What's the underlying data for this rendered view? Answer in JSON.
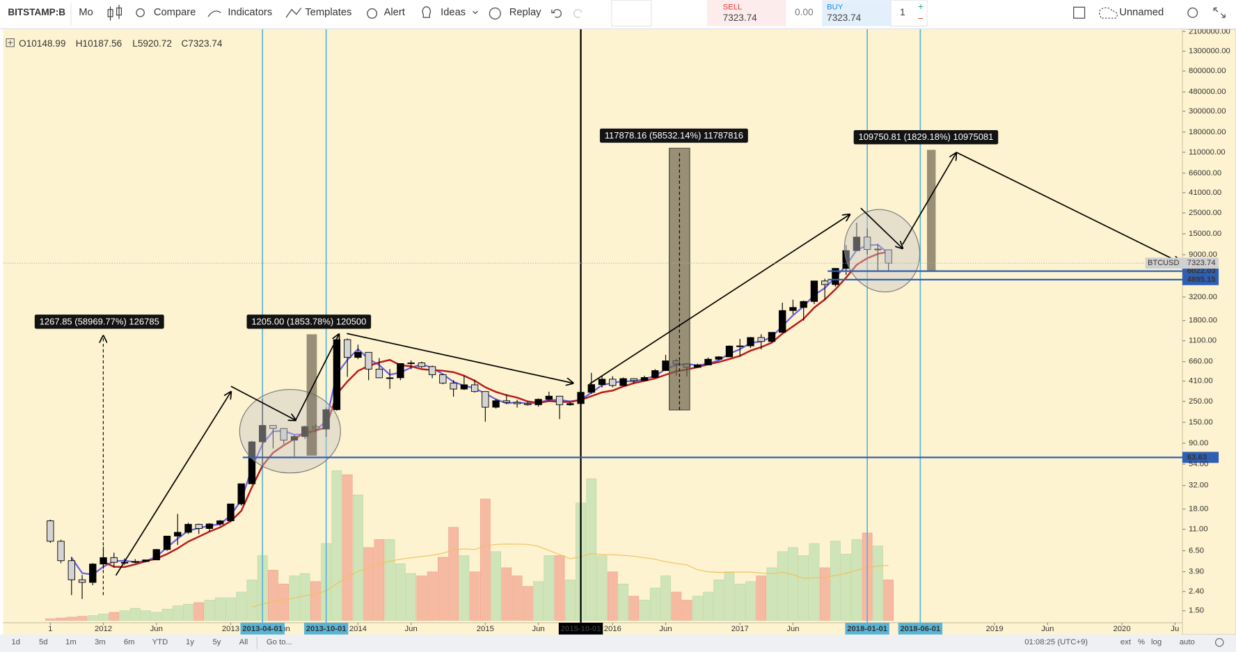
{
  "toolbar": {
    "symbol": "BITSTAMP:B",
    "interval": "Mo",
    "buttons": [
      "Compare",
      "Indicators",
      "Templates",
      "Alert",
      "Ideas",
      "Replay"
    ],
    "sell": {
      "label": "SELL",
      "price": "7323.74"
    },
    "spread": "0.00",
    "buy": {
      "label": "BUY",
      "price": "7323.74"
    },
    "quantity": "1",
    "layout_name": "Unnamed"
  },
  "legend": [
    "O10148.99",
    "H10187.56",
    "L5920.72",
    "C7323.74"
  ],
  "chart_data": {
    "type": "candlestick",
    "log_scale": true,
    "start": "2011-08",
    "xlim": [
      "2011-04",
      "2020-07"
    ],
    "ylim": [
      1.12,
      2220000
    ],
    "candles": [
      [
        13.5,
        13.9,
        7.9,
        8.2
      ],
      [
        8.2,
        8.5,
        4.8,
        5.1
      ],
      [
        5.1,
        5.6,
        2.2,
        3.2
      ],
      [
        3.2,
        3.6,
        2.0,
        3.0
      ],
      [
        3.0,
        4.8,
        2.8,
        4.7
      ],
      [
        4.7,
        7.2,
        4.2,
        5.5
      ],
      [
        5.5,
        6.2,
        4.3,
        4.9
      ],
      [
        4.9,
        5.4,
        4.6,
        4.9
      ],
      [
        4.9,
        5.3,
        4.8,
        5.0
      ],
      [
        5.0,
        5.2,
        4.9,
        5.2
      ],
      [
        5.2,
        6.8,
        5.2,
        6.7
      ],
      [
        6.7,
        9.3,
        6.5,
        9.3
      ],
      [
        9.3,
        16.0,
        7.5,
        10.2
      ],
      [
        10.2,
        12.9,
        9.8,
        12.4
      ],
      [
        12.4,
        12.6,
        9.8,
        11.2
      ],
      [
        11.2,
        12.8,
        10.4,
        12.5
      ],
      [
        12.5,
        13.8,
        12.0,
        13.5
      ],
      [
        13.5,
        20.5,
        13.2,
        20.4
      ],
      [
        20.4,
        33.5,
        19.6,
        33.4
      ],
      [
        33.4,
        95,
        33,
        93
      ],
      [
        93,
        266,
        50,
        139
      ],
      [
        139,
        140,
        79,
        129
      ],
      [
        129,
        130,
        88,
        97
      ],
      [
        97,
        110,
        65,
        106
      ],
      [
        106,
        138,
        100,
        135
      ],
      [
        135,
        145,
        118,
        127
      ],
      [
        127,
        215,
        105,
        204
      ],
      [
        204,
        1163,
        199,
        1130
      ],
      [
        1130,
        1163,
        455,
        732
      ],
      [
        732,
        1000,
        700,
        829
      ],
      [
        829,
        830,
        420,
        550
      ],
      [
        550,
        720,
        440,
        445
      ],
      [
        445,
        550,
        340,
        445
      ],
      [
        445,
        630,
        420,
        630
      ],
      [
        630,
        680,
        550,
        640
      ],
      [
        640,
        660,
        565,
        585
      ],
      [
        585,
        600,
        440,
        480
      ],
      [
        480,
        490,
        380,
        390
      ],
      [
        390,
        420,
        280,
        338
      ],
      [
        338,
        470,
        330,
        375
      ],
      [
        375,
        425,
        310,
        318
      ],
      [
        318,
        320,
        152,
        217
      ],
      [
        217,
        265,
        210,
        254
      ],
      [
        254,
        298,
        235,
        244
      ],
      [
        244,
        260,
        215,
        236
      ],
      [
        236,
        248,
        225,
        230
      ],
      [
        230,
        268,
        220,
        263
      ],
      [
        263,
        317,
        252,
        284
      ],
      [
        284,
        285,
        162,
        230
      ],
      [
        230,
        245,
        225,
        237
      ],
      [
        237,
        333,
        235,
        312
      ],
      [
        312,
        502,
        300,
        377
      ],
      [
        377,
        465,
        350,
        430
      ],
      [
        430,
        462,
        352,
        368
      ],
      [
        368,
        448,
        363,
        436
      ],
      [
        436,
        440,
        390,
        416
      ],
      [
        416,
        468,
        414,
        448
      ],
      [
        448,
        550,
        440,
        531
      ],
      [
        531,
        780,
        525,
        673
      ],
      [
        673,
        705,
        470,
        624
      ],
      [
        624,
        625,
        460,
        574
      ],
      [
        574,
        630,
        570,
        609
      ],
      [
        609,
        730,
        604,
        700
      ],
      [
        700,
        755,
        685,
        742
      ],
      [
        742,
        980,
        740,
        966
      ],
      [
        966,
        1150,
        750,
        970
      ],
      [
        970,
        1205,
        920,
        1190
      ],
      [
        1190,
        1290,
        890,
        1080
      ],
      [
        1080,
        1350,
        1060,
        1350
      ],
      [
        1350,
        2790,
        1350,
        2300
      ],
      [
        2300,
        3000,
        2100,
        2480
      ],
      [
        2480,
        2930,
        1800,
        2870
      ],
      [
        2870,
        4750,
        2690,
        4740
      ],
      [
        4740,
        5000,
        2970,
        4340
      ],
      [
        4340,
        6470,
        4130,
        6440
      ],
      [
        6440,
        11400,
        5500,
        9950
      ],
      [
        9950,
        19660,
        9950,
        13850
      ],
      [
        13850,
        17150,
        9050,
        10220
      ],
      [
        10220,
        11780,
        5970,
        10330
      ],
      [
        10148.99,
        10187.56,
        5920.72,
        7323.74
      ]
    ],
    "volume": [
      2,
      3,
      4,
      5,
      6,
      8,
      10,
      12,
      15,
      12,
      10,
      14,
      18,
      20,
      22,
      25,
      28,
      28,
      35,
      50,
      80,
      62,
      45,
      55,
      58,
      48,
      95,
      185,
      180,
      155,
      90,
      100,
      100,
      70,
      58,
      55,
      60,
      78,
      115,
      80,
      60,
      150,
      85,
      65,
      55,
      42,
      48,
      80,
      80,
      50,
      145,
      175,
      80,
      60,
      45,
      30,
      25,
      40,
      55,
      35,
      25,
      30,
      35,
      50,
      60,
      45,
      48,
      55,
      65,
      85,
      90,
      80,
      95,
      65,
      98,
      82,
      100,
      108,
      92,
      50
    ],
    "yticks": [
      {
        "value": 2100000,
        "label": "2100000.00"
      },
      {
        "value": 1300000,
        "label": "1300000.00"
      },
      {
        "value": 800000,
        "label": "800000.00"
      },
      {
        "value": 480000,
        "label": "480000.00"
      },
      {
        "value": 300000,
        "label": "300000.00"
      },
      {
        "value": 180000,
        "label": "180000.00"
      },
      {
        "value": 110000,
        "label": "110000.00"
      },
      {
        "value": 66000,
        "label": "66000.00"
      },
      {
        "value": 41000,
        "label": "41000.00"
      },
      {
        "value": 25000,
        "label": "25000.00"
      },
      {
        "value": 15000,
        "label": "15000.00"
      },
      {
        "value": 9000,
        "label": "9000.00"
      },
      {
        "value": 3200,
        "label": "3200.00"
      },
      {
        "value": 1800,
        "label": "1800.00"
      },
      {
        "value": 1100,
        "label": "1100.00"
      },
      {
        "value": 660,
        "label": "660.00"
      },
      {
        "value": 410,
        "label": "410.00"
      },
      {
        "value": 250,
        "label": "250.00"
      },
      {
        "value": 150,
        "label": "150.00"
      },
      {
        "value": 90,
        "label": "90.00"
      },
      {
        "value": 54,
        "label": "54.00"
      },
      {
        "value": 32,
        "label": "32.00"
      },
      {
        "value": 18,
        "label": "18.00"
      },
      {
        "value": 11,
        "label": "11.00"
      },
      {
        "value": 6.5,
        "label": "6.50"
      },
      {
        "value": 3.9,
        "label": "3.90"
      },
      {
        "value": 2.4,
        "label": "2.40"
      },
      {
        "value": 1.5,
        "label": "1.50"
      }
    ],
    "xticks": [
      {
        "date": "2011-08",
        "label": "1"
      },
      {
        "date": "2012-01",
        "label": "2012"
      },
      {
        "date": "2012-06",
        "label": "Jun"
      },
      {
        "date": "2013-01",
        "label": "2013"
      },
      {
        "date": "2013-06",
        "label": "Jun"
      },
      {
        "date": "2014-01",
        "label": "2014"
      },
      {
        "date": "2014-06",
        "label": "Jun"
      },
      {
        "date": "2015-01",
        "label": "2015"
      },
      {
        "date": "2015-06",
        "label": "Jun"
      },
      {
        "date": "2016-01",
        "label": "2016"
      },
      {
        "date": "2016-06",
        "label": "Jun"
      },
      {
        "date": "2017-01",
        "label": "2017"
      },
      {
        "date": "2017-06",
        "label": "Jun"
      },
      {
        "date": "2019-01",
        "label": "2019"
      },
      {
        "date": "2019-06",
        "label": "Jun"
      },
      {
        "date": "2020-01",
        "label": "2020"
      },
      {
        "date": "2020-06",
        "label": "Ju"
      }
    ],
    "date_markers": [
      {
        "label": "2013-04-01",
        "color": "#5ab4d6"
      },
      {
        "label": "2013-10-01",
        "color": "#5ab4d6"
      },
      {
        "label": "2015-10-01",
        "color": "#000000"
      },
      {
        "label": "2018-01-01",
        "color": "#5ab4d6"
      },
      {
        "label": "2018-06-01",
        "color": "#5ab4d6"
      }
    ],
    "price_lines": [
      {
        "value": 6022.03,
        "label": "6022.03"
      },
      {
        "value": 4895.15,
        "label": "4895.15"
      },
      {
        "value": 63.63,
        "label": "63.63"
      }
    ],
    "last_price": {
      "symbol": "BTCUSD",
      "value": 7323.74,
      "label": "7323.74"
    },
    "measurements": [
      "1267.85 (58969.77%) 126785",
      "1205.00 (1853.78%) 120500",
      "117878.16 (58532.14%) 11787816",
      "109750.81 (1829.18%) 10975081"
    ]
  },
  "bottom_bar": {
    "ranges": [
      "1d",
      "5d",
      "1m",
      "3m",
      "6m",
      "YTD",
      "1y",
      "5y",
      "All"
    ],
    "goto": "Go to...",
    "clock": "01:08:25 (UTC+9)",
    "options": [
      "ext",
      "%",
      "log",
      "auto"
    ]
  }
}
